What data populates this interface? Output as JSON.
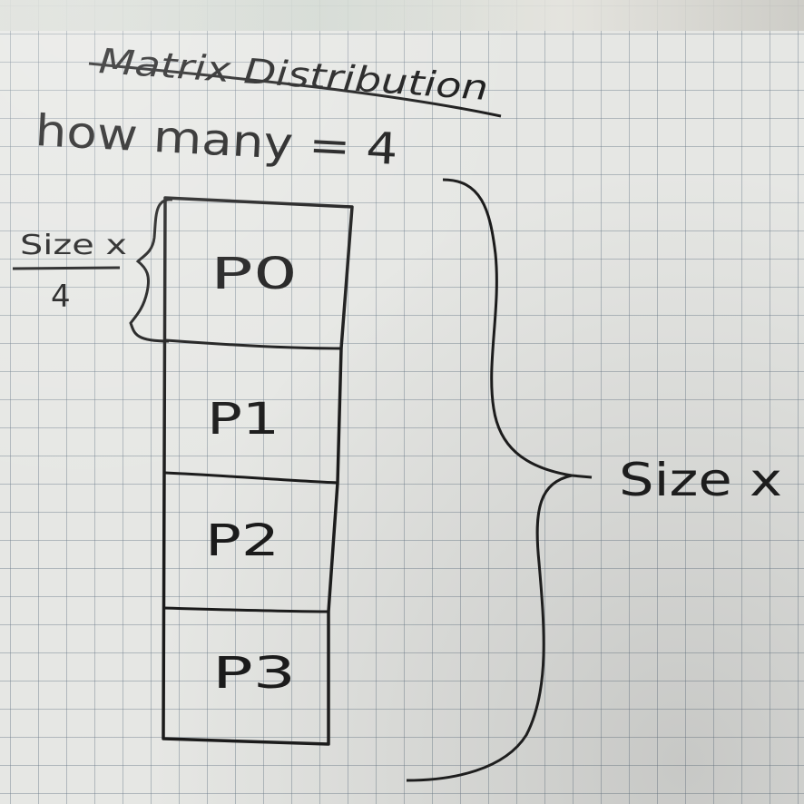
{
  "diagram": {
    "title": "Matrix Distribution",
    "subtitle": "how many = 4",
    "row_height_label": {
      "numerator": "Size x",
      "denominator": "4"
    },
    "blocks": [
      {
        "label": "P0"
      },
      {
        "label": "P1"
      },
      {
        "label": "P2"
      },
      {
        "label": "P3"
      }
    ],
    "total_label": "Size x",
    "colors": {
      "ink": "#1a1a1a",
      "paper": "#e6e7e4",
      "grid": "#6e7d8c"
    }
  }
}
